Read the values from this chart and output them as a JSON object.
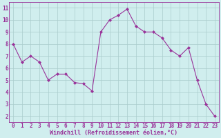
{
  "x_plot": [
    0,
    1,
    2,
    3,
    4,
    5,
    6,
    7,
    8,
    9,
    10,
    11,
    12,
    13,
    14,
    15,
    16,
    17,
    18,
    19,
    20,
    21,
    22,
    23
  ],
  "y_plot": [
    8.0,
    6.5,
    7.0,
    6.5,
    5.0,
    5.5,
    5.5,
    4.8,
    4.7,
    4.1,
    9.0,
    10.0,
    10.4,
    10.9,
    9.5,
    9.0,
    9.0,
    8.5,
    7.5,
    7.0,
    7.7,
    5.0,
    3.0,
    2.0
  ],
  "line_color": "#993399",
  "marker_color": "#993399",
  "bg_color": "#d0eeee",
  "grid_color": "#aacccc",
  "xlabel": "Windchill (Refroidissement éolien,°C)",
  "ylabel_ticks": [
    2,
    3,
    4,
    5,
    6,
    7,
    8,
    9,
    10,
    11
  ],
  "xlabel_ticks": [
    0,
    1,
    2,
    3,
    4,
    5,
    6,
    7,
    8,
    9,
    10,
    11,
    12,
    13,
    14,
    15,
    16,
    17,
    18,
    19,
    20,
    21,
    22,
    23
  ],
  "ylim": [
    1.5,
    11.5
  ],
  "xlim": [
    -0.5,
    23.5
  ],
  "tick_color": "#993399",
  "label_color": "#993399",
  "tick_fontsize": 5.5,
  "xlabel_fontsize": 6.0
}
